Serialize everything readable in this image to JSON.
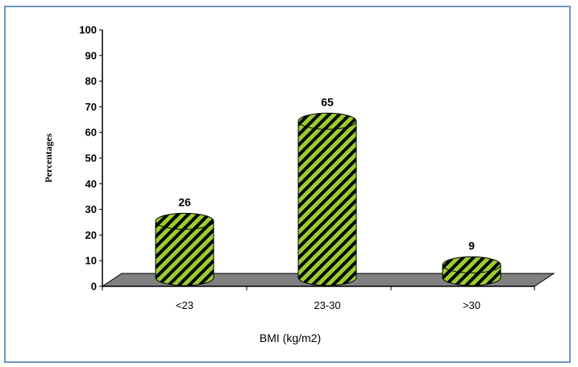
{
  "chart_data": {
    "type": "bar",
    "style": "3d-cylinder",
    "categories": [
      "<23",
      "23-30",
      ">30"
    ],
    "values": [
      26,
      65,
      9
    ],
    "data_labels": [
      "26",
      "65",
      "9"
    ],
    "xlabel": "BMI (kg/m2)",
    "ylabel": "Percentages",
    "ylim": [
      0,
      100
    ],
    "yticks": [
      "0",
      "10",
      "20",
      "30",
      "40",
      "50",
      "60",
      "70",
      "80",
      "90",
      "100"
    ],
    "grid": false,
    "legend": "none",
    "colors": {
      "bar_fill": "#9acd32",
      "bar_stripe": "#000000",
      "floor": "#808080",
      "frame_border": "#6e93c4"
    }
  }
}
